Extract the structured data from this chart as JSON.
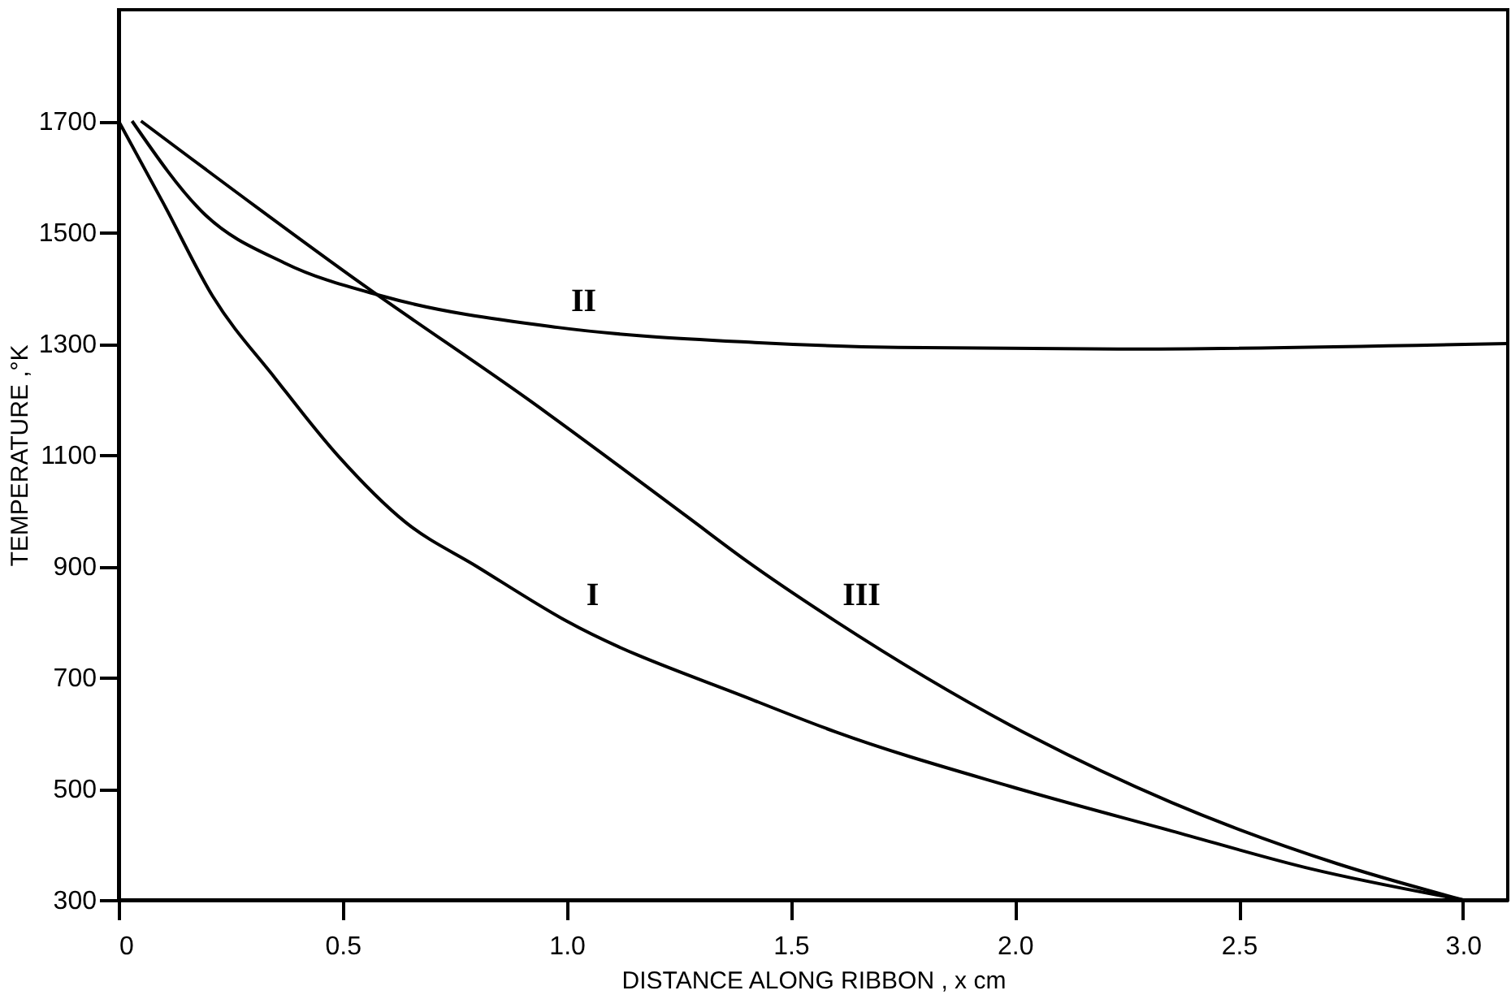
{
  "chart_data": {
    "type": "line",
    "xlabel": "DISTANCE ALONG RIBBON , x cm",
    "ylabel": "TEMPERATURE ,°K",
    "xlim": [
      0,
      3.1
    ],
    "xticks": [
      {
        "value": 0,
        "label": "0"
      },
      {
        "value": 0.5,
        "label": "0.5"
      },
      {
        "value": 1,
        "label": "1.0"
      },
      {
        "value": 1.5,
        "label": "1.5"
      },
      {
        "value": 2,
        "label": "2.0"
      },
      {
        "value": 2.5,
        "label": "2.5"
      },
      {
        "value": 3,
        "label": "3.0"
      }
    ],
    "ylim": [
      300,
      1900
    ],
    "yticks": [
      300,
      500,
      700,
      900,
      1100,
      1300,
      1500,
      1700
    ],
    "marker": "none",
    "line_style": "solid",
    "series": [
      {
        "name": "I",
        "color": "#000000",
        "x": [
          0,
          0.1,
          0.21,
          0.35,
          0.49,
          0.64,
          0.8,
          1.0,
          1.42,
          1.6,
          1.99,
          2.35,
          2.66,
          3.0
        ],
        "values": [
          1700,
          1552,
          1385,
          1237,
          1098,
          979,
          899,
          801,
          658,
          602,
          504,
          424,
          356,
          300
        ]
      },
      {
        "name": "II",
        "color": "#000000",
        "x": [
          0.03,
          0.19,
          0.37,
          0.59,
          0.98,
          1.42,
          1.74,
          2.23,
          3.1
        ],
        "values": [
          1700,
          1534,
          1445,
          1385,
          1329,
          1302,
          1293,
          1290,
          1300
        ]
      },
      {
        "name": "III",
        "color": "#000000",
        "x": [
          0.05,
          0.55,
          0.92,
          1.27,
          1.4,
          1.6,
          1.99,
          2.35,
          2.72,
          3.0
        ],
        "values": [
          1700,
          1403,
          1196,
          988,
          910,
          801,
          614,
          475,
          365,
          300
        ]
      }
    ]
  }
}
